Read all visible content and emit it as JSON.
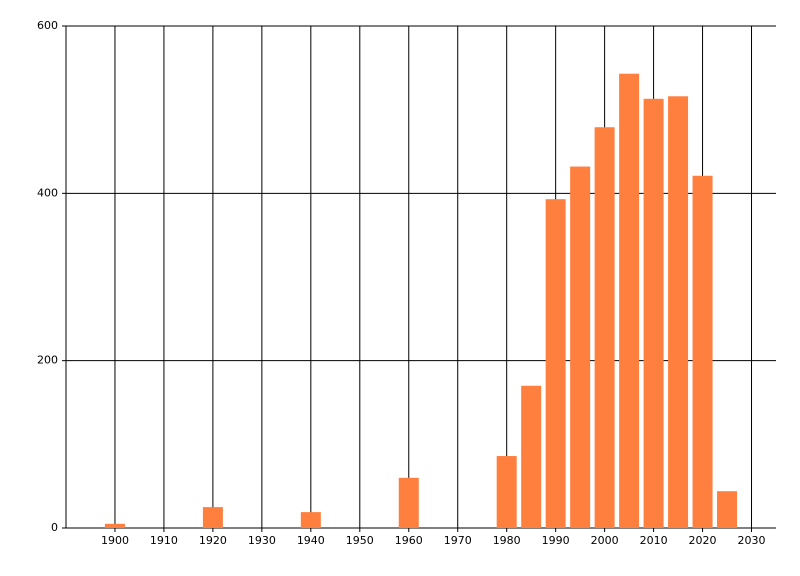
{
  "chart_data": {
    "type": "bar",
    "color": "#ff7f3f",
    "grid": true,
    "x": [
      1900,
      1920,
      1940,
      1960,
      1980,
      1985,
      1990,
      1995,
      2000,
      2005,
      2010,
      2015,
      2020,
      2025
    ],
    "values": [
      5,
      25,
      19,
      60,
      86,
      170,
      393,
      432,
      479,
      543,
      513,
      516,
      421,
      44
    ],
    "xlim": [
      1890,
      2035
    ],
    "xticks": [
      1900,
      1910,
      1920,
      1930,
      1940,
      1950,
      1960,
      1970,
      1980,
      1990,
      2000,
      2010,
      2020,
      2030
    ],
    "ylim": [
      0,
      600
    ],
    "yticks": [
      0,
      200,
      400,
      600
    ]
  }
}
